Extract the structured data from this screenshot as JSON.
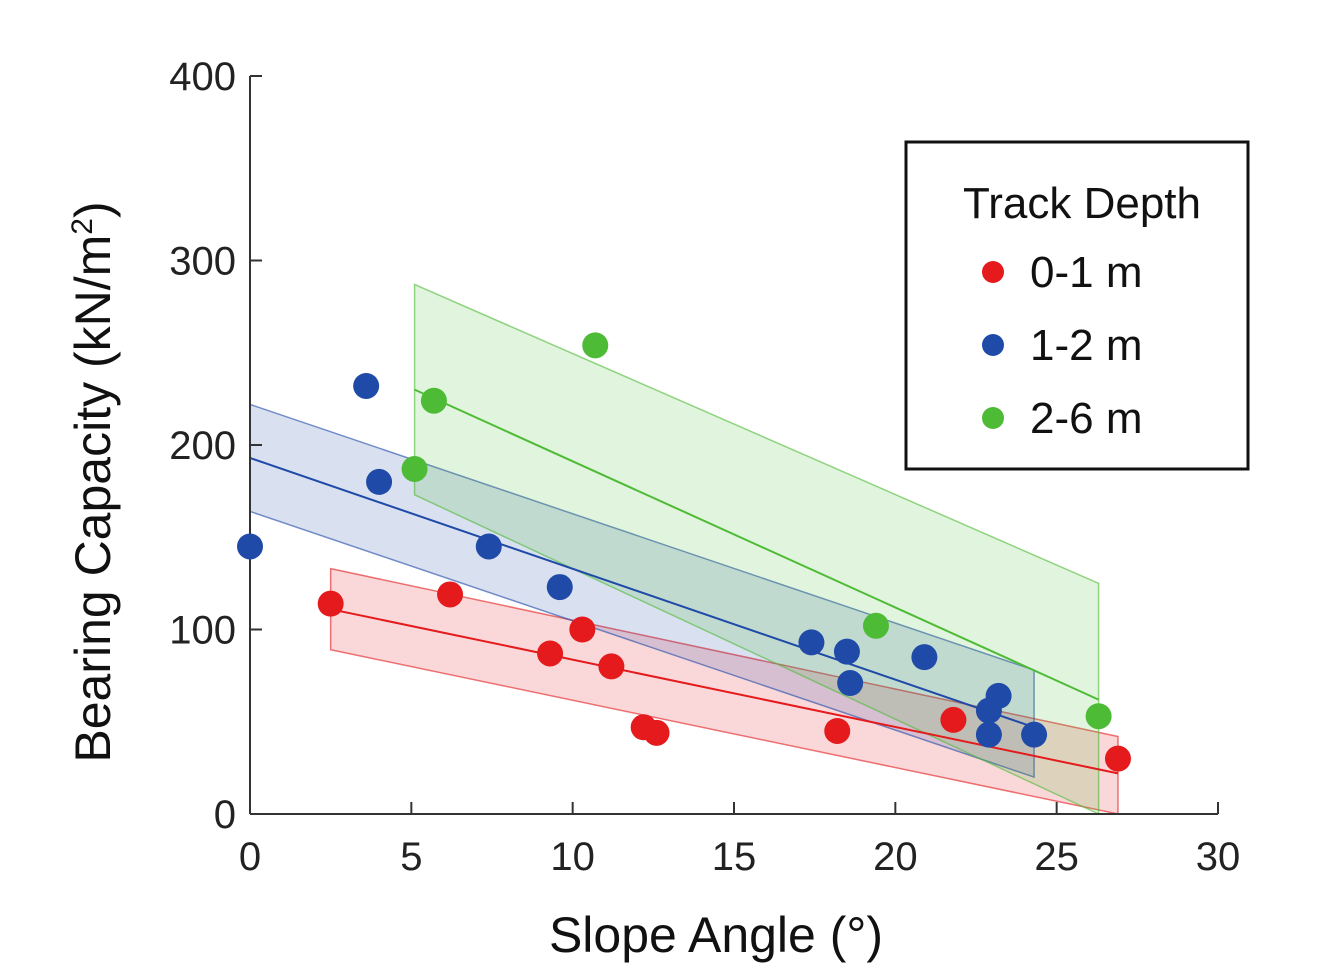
{
  "chart_data": {
    "type": "scatter",
    "title": "",
    "xlabel": "Slope Angle (°)",
    "ylabel_main": "Bearing Capacity (kN/m",
    "ylabel_sup": "2",
    "ylabel_close": ")",
    "xlim": [
      0,
      30
    ],
    "ylim": [
      0,
      400
    ],
    "xticks": [
      0,
      5,
      10,
      15,
      20,
      25,
      30
    ],
    "yticks": [
      0,
      100,
      200,
      300,
      400
    ],
    "legend": {
      "title": "Track Depth",
      "position": "top-right"
    },
    "series": [
      {
        "name": "0-1 m",
        "color": "#e41a1c",
        "points": [
          [
            2.5,
            114
          ],
          [
            6.2,
            119
          ],
          [
            9.3,
            87
          ],
          [
            10.3,
            100
          ],
          [
            11.2,
            80
          ],
          [
            12.2,
            47
          ],
          [
            12.6,
            44
          ],
          [
            18.2,
            45
          ],
          [
            21.8,
            51
          ],
          [
            26.9,
            30
          ]
        ],
        "fit": {
          "x": [
            2.5,
            26.9
          ],
          "y": [
            111,
            22
          ]
        },
        "band": {
          "x": [
            2.5,
            26.9
          ],
          "upper": [
            133,
            42
          ],
          "lower": [
            89,
            0
          ]
        }
      },
      {
        "name": "1-2 m",
        "color": "#1f4aa8",
        "points": [
          [
            0.0,
            145
          ],
          [
            3.6,
            232
          ],
          [
            4.0,
            180
          ],
          [
            7.4,
            145
          ],
          [
            9.6,
            123
          ],
          [
            17.4,
            93
          ],
          [
            18.5,
            88
          ],
          [
            18.6,
            71
          ],
          [
            20.9,
            85
          ],
          [
            22.9,
            43
          ],
          [
            22.9,
            56
          ],
          [
            23.2,
            64
          ],
          [
            24.3,
            43
          ]
        ],
        "fit": {
          "x": [
            0,
            24.3
          ],
          "y": [
            193,
            47
          ]
        },
        "band": {
          "x": [
            0,
            24.3
          ],
          "upper": [
            222,
            78
          ],
          "lower": [
            164,
            20
          ]
        }
      },
      {
        "name": "2-6 m",
        "color": "#4dbb35",
        "points": [
          [
            5.1,
            187
          ],
          [
            5.7,
            224
          ],
          [
            10.7,
            254
          ],
          [
            19.4,
            102
          ],
          [
            26.3,
            53
          ]
        ],
        "fit": {
          "x": [
            5.1,
            26.3
          ],
          "y": [
            230,
            62
          ]
        },
        "band": {
          "x": [
            5.1,
            26.3
          ],
          "upper": [
            287,
            125
          ],
          "lower": [
            173,
            0
          ]
        }
      }
    ]
  }
}
